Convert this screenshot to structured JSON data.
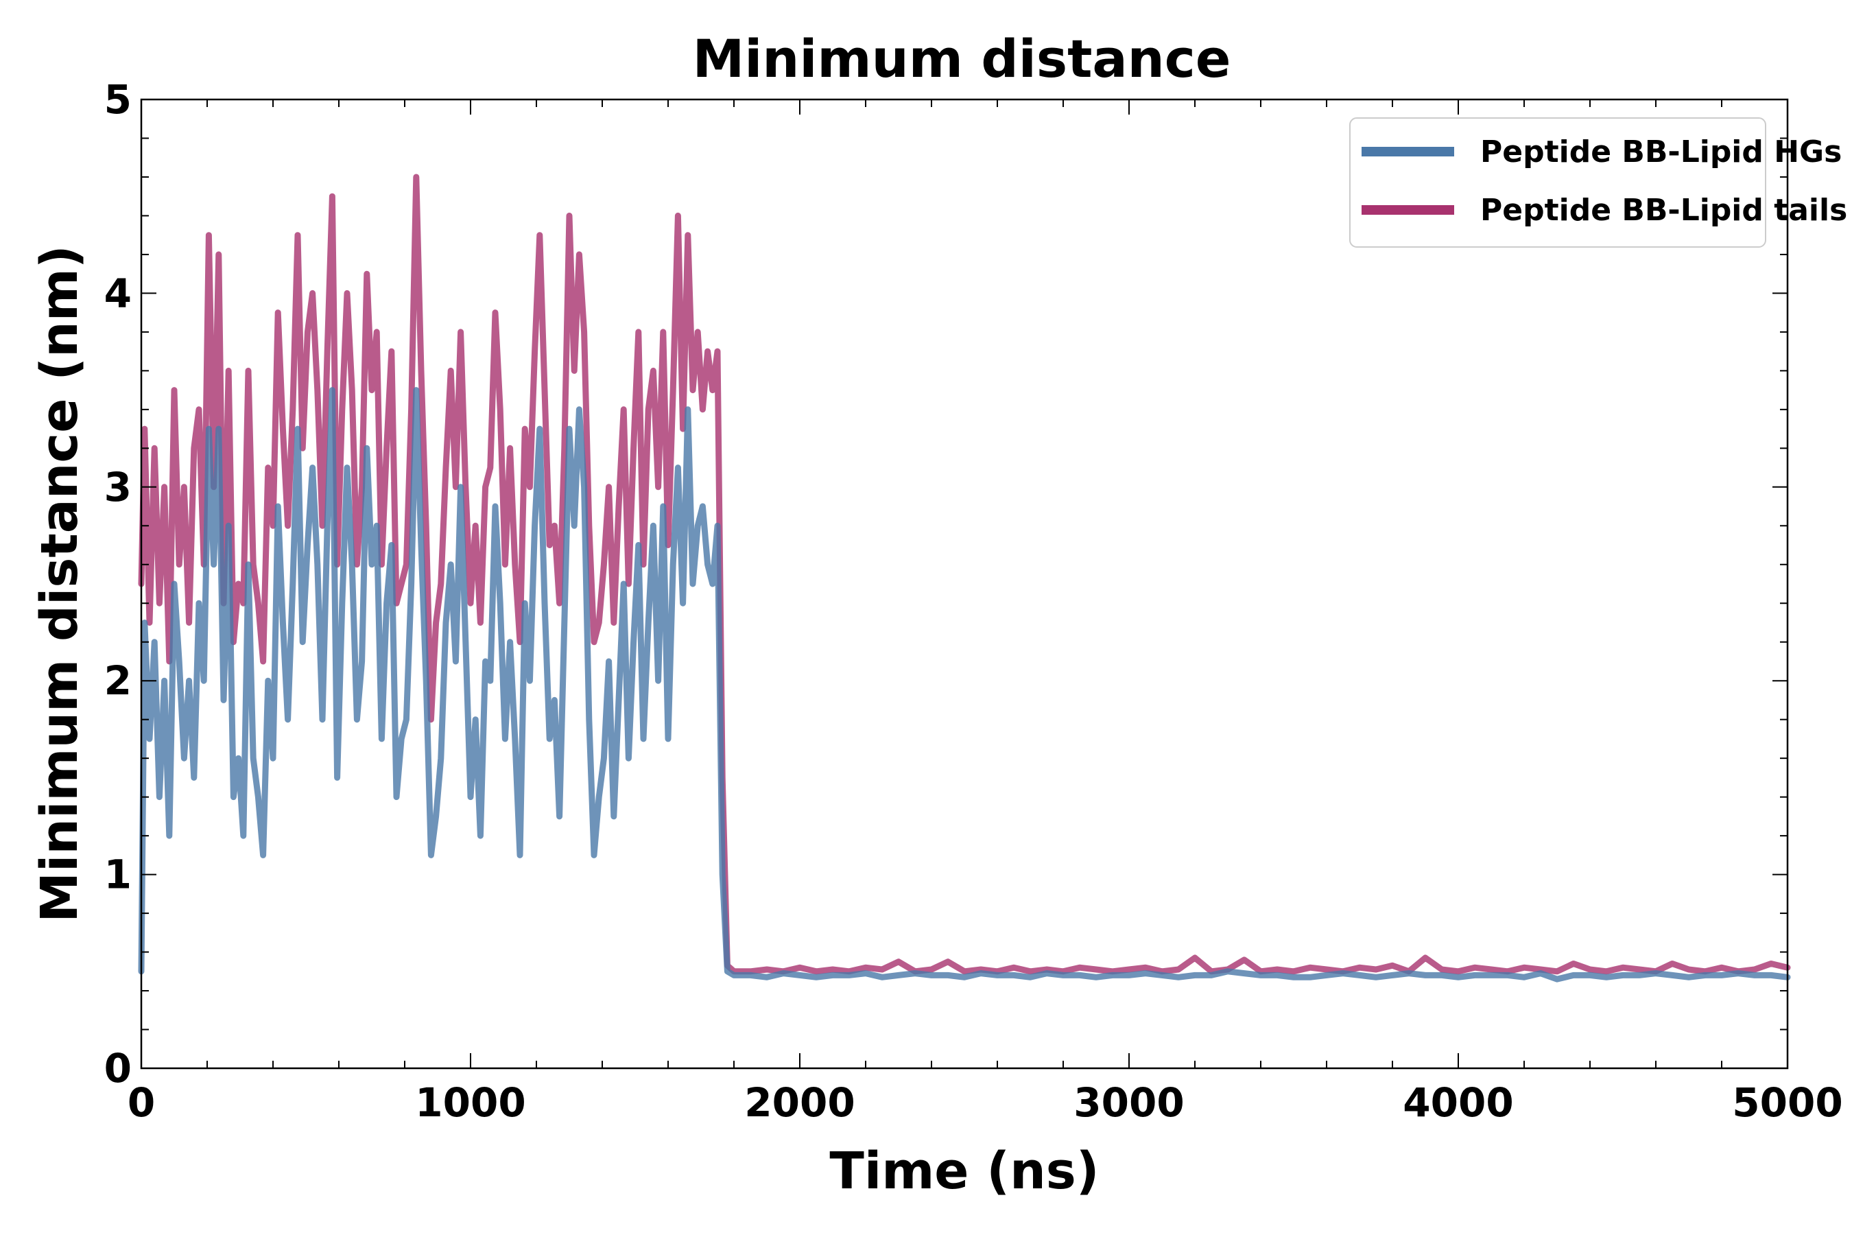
{
  "chart_data": {
    "type": "line",
    "title": "Minimum distance",
    "xlabel": "Time (ns)",
    "ylabel": "Minimum distance (nm)",
    "xlim": [
      0,
      5000
    ],
    "ylim": [
      0,
      5
    ],
    "xticks": [
      0,
      1000,
      2000,
      3000,
      4000,
      5000
    ],
    "xtick_labels": [
      "0",
      "1000",
      "2000",
      "3000",
      "4000",
      "5000"
    ],
    "yticks": [
      0,
      1,
      2,
      3,
      4,
      5
    ],
    "ytick_labels": [
      "0",
      "1",
      "2",
      "3",
      "4",
      "5"
    ],
    "grid": false,
    "legend_position": "top-right",
    "series": [
      {
        "name": "Peptide BB-Lipid HGs",
        "color": "#4a78a8",
        "x": [
          0,
          10,
          25,
          40,
          55,
          70,
          85,
          100,
          115,
          130,
          145,
          160,
          175,
          190,
          205,
          220,
          235,
          250,
          265,
          280,
          295,
          310,
          325,
          340,
          355,
          370,
          385,
          400,
          415,
          430,
          445,
          460,
          475,
          490,
          505,
          520,
          535,
          550,
          565,
          580,
          595,
          610,
          625,
          640,
          655,
          670,
          685,
          700,
          715,
          730,
          745,
          760,
          775,
          790,
          805,
          820,
          835,
          850,
          865,
          880,
          895,
          910,
          925,
          940,
          955,
          970,
          985,
          1000,
          1015,
          1030,
          1045,
          1060,
          1075,
          1090,
          1105,
          1120,
          1135,
          1150,
          1165,
          1180,
          1195,
          1210,
          1225,
          1240,
          1255,
          1270,
          1285,
          1300,
          1315,
          1330,
          1345,
          1360,
          1375,
          1390,
          1405,
          1420,
          1435,
          1450,
          1465,
          1480,
          1495,
          1510,
          1525,
          1540,
          1555,
          1570,
          1585,
          1600,
          1615,
          1630,
          1645,
          1660,
          1675,
          1690,
          1705,
          1720,
          1735,
          1750,
          1765,
          1780,
          1800,
          1850,
          1900,
          1950,
          2000,
          2050,
          2100,
          2150,
          2200,
          2250,
          2300,
          2350,
          2400,
          2450,
          2500,
          2550,
          2600,
          2650,
          2700,
          2750,
          2800,
          2850,
          2900,
          2950,
          3000,
          3050,
          3100,
          3150,
          3200,
          3250,
          3300,
          3350,
          3400,
          3450,
          3500,
          3550,
          3600,
          3650,
          3700,
          3750,
          3800,
          3850,
          3900,
          3950,
          4000,
          4050,
          4100,
          4150,
          4200,
          4250,
          4300,
          4350,
          4400,
          4450,
          4500,
          4550,
          4600,
          4650,
          4700,
          4750,
          4800,
          4850,
          4900,
          4950,
          5000
        ],
        "y": [
          0.5,
          2.3,
          1.7,
          2.2,
          1.4,
          2.0,
          1.2,
          2.5,
          2.1,
          1.6,
          2.0,
          1.5,
          2.4,
          2.0,
          3.3,
          2.6,
          3.3,
          1.9,
          2.8,
          1.4,
          1.6,
          1.2,
          2.6,
          1.6,
          1.4,
          1.1,
          2.0,
          1.6,
          2.9,
          2.3,
          1.8,
          2.5,
          3.3,
          2.2,
          2.7,
          3.1,
          2.6,
          1.8,
          2.8,
          3.5,
          1.5,
          2.4,
          3.1,
          2.6,
          1.8,
          2.1,
          3.2,
          2.6,
          2.8,
          1.7,
          2.4,
          2.7,
          1.4,
          1.7,
          1.8,
          2.5,
          3.5,
          2.7,
          2.0,
          1.1,
          1.3,
          1.6,
          2.3,
          2.6,
          2.1,
          3.0,
          2.2,
          1.4,
          1.8,
          1.2,
          2.1,
          2.0,
          2.9,
          2.4,
          1.7,
          2.2,
          1.7,
          1.1,
          2.4,
          2.0,
          2.8,
          3.3,
          2.4,
          1.7,
          1.9,
          1.3,
          2.3,
          3.3,
          2.8,
          3.4,
          3.0,
          1.8,
          1.1,
          1.4,
          1.6,
          2.1,
          1.3,
          1.9,
          2.5,
          1.6,
          2.2,
          2.7,
          1.7,
          2.3,
          2.8,
          2.0,
          2.9,
          1.7,
          2.6,
          3.1,
          2.4,
          3.4,
          2.5,
          2.8,
          2.9,
          2.6,
          2.5,
          2.8,
          1.0,
          0.5,
          0.48,
          0.48,
          0.47,
          0.49,
          0.48,
          0.47,
          0.48,
          0.48,
          0.49,
          0.47,
          0.48,
          0.49,
          0.48,
          0.48,
          0.47,
          0.49,
          0.48,
          0.48,
          0.47,
          0.49,
          0.48,
          0.48,
          0.47,
          0.48,
          0.48,
          0.49,
          0.48,
          0.47,
          0.48,
          0.48,
          0.5,
          0.49,
          0.48,
          0.48,
          0.47,
          0.47,
          0.48,
          0.49,
          0.48,
          0.47,
          0.48,
          0.49,
          0.48,
          0.48,
          0.47,
          0.48,
          0.48,
          0.48,
          0.47,
          0.49,
          0.46,
          0.48,
          0.48,
          0.47,
          0.48,
          0.48,
          0.49,
          0.48,
          0.47,
          0.48,
          0.48,
          0.49,
          0.48,
          0.48,
          0.47
        ]
      },
      {
        "name": "Peptide BB-Lipid tails",
        "color": "#a8326e",
        "x": [
          0,
          10,
          25,
          40,
          55,
          70,
          85,
          100,
          115,
          130,
          145,
          160,
          175,
          190,
          205,
          220,
          235,
          250,
          265,
          280,
          295,
          310,
          325,
          340,
          355,
          370,
          385,
          400,
          415,
          430,
          445,
          460,
          475,
          490,
          505,
          520,
          535,
          550,
          565,
          580,
          595,
          610,
          625,
          640,
          655,
          670,
          685,
          700,
          715,
          730,
          745,
          760,
          775,
          790,
          805,
          820,
          835,
          850,
          865,
          880,
          895,
          910,
          925,
          940,
          955,
          970,
          985,
          1000,
          1015,
          1030,
          1045,
          1060,
          1075,
          1090,
          1105,
          1120,
          1135,
          1150,
          1165,
          1180,
          1195,
          1210,
          1225,
          1240,
          1255,
          1270,
          1285,
          1300,
          1315,
          1330,
          1345,
          1360,
          1375,
          1390,
          1405,
          1420,
          1435,
          1450,
          1465,
          1480,
          1495,
          1510,
          1525,
          1540,
          1555,
          1570,
          1585,
          1600,
          1615,
          1630,
          1645,
          1660,
          1675,
          1690,
          1705,
          1720,
          1735,
          1750,
          1765,
          1780,
          1800,
          1850,
          1900,
          1950,
          2000,
          2050,
          2100,
          2150,
          2200,
          2250,
          2300,
          2350,
          2400,
          2450,
          2500,
          2550,
          2600,
          2650,
          2700,
          2750,
          2800,
          2850,
          2900,
          2950,
          3000,
          3050,
          3100,
          3150,
          3200,
          3250,
          3300,
          3350,
          3400,
          3450,
          3500,
          3550,
          3600,
          3650,
          3700,
          3750,
          3800,
          3850,
          3900,
          3950,
          4000,
          4050,
          4100,
          4150,
          4200,
          4250,
          4300,
          4350,
          4400,
          4450,
          4500,
          4550,
          4600,
          4650,
          4700,
          4750,
          4800,
          4850,
          4900,
          4950,
          5000
        ],
        "y": [
          2.5,
          3.3,
          2.3,
          3.2,
          2.4,
          3.0,
          2.1,
          3.5,
          2.6,
          3.0,
          2.3,
          3.2,
          3.4,
          2.6,
          4.3,
          3.0,
          4.2,
          2.4,
          3.6,
          2.2,
          2.5,
          2.4,
          3.6,
          2.6,
          2.4,
          2.1,
          3.1,
          2.8,
          3.9,
          3.3,
          2.8,
          3.4,
          4.3,
          3.2,
          3.8,
          4.0,
          3.5,
          2.8,
          3.7,
          4.5,
          2.6,
          3.4,
          4.0,
          3.5,
          2.6,
          3.0,
          4.1,
          3.5,
          3.8,
          2.6,
          3.2,
          3.7,
          2.4,
          2.5,
          2.6,
          3.4,
          4.6,
          3.6,
          2.8,
          1.8,
          2.3,
          2.5,
          3.1,
          3.6,
          3.0,
          3.8,
          3.0,
          2.4,
          2.8,
          2.3,
          3.0,
          3.1,
          3.9,
          3.4,
          2.6,
          3.2,
          2.6,
          2.2,
          3.3,
          3.0,
          3.7,
          4.3,
          3.5,
          2.7,
          2.8,
          2.4,
          3.2,
          4.4,
          3.6,
          4.2,
          3.8,
          2.8,
          2.2,
          2.3,
          2.6,
          3.0,
          2.3,
          2.9,
          3.4,
          2.5,
          3.2,
          3.8,
          2.6,
          3.4,
          3.6,
          3.0,
          3.8,
          2.7,
          3.5,
          4.4,
          3.3,
          4.3,
          3.5,
          3.8,
          3.4,
          3.7,
          3.5,
          3.7,
          1.5,
          0.53,
          0.5,
          0.5,
          0.51,
          0.5,
          0.52,
          0.5,
          0.51,
          0.5,
          0.52,
          0.51,
          0.55,
          0.5,
          0.51,
          0.55,
          0.5,
          0.51,
          0.5,
          0.52,
          0.5,
          0.51,
          0.5,
          0.52,
          0.51,
          0.5,
          0.51,
          0.52,
          0.5,
          0.51,
          0.57,
          0.5,
          0.51,
          0.56,
          0.5,
          0.51,
          0.5,
          0.52,
          0.51,
          0.5,
          0.52,
          0.51,
          0.53,
          0.5,
          0.57,
          0.51,
          0.5,
          0.52,
          0.51,
          0.5,
          0.52,
          0.51,
          0.5,
          0.54,
          0.51,
          0.5,
          0.52,
          0.51,
          0.5,
          0.54,
          0.51,
          0.5,
          0.52,
          0.5,
          0.51,
          0.54,
          0.52
        ]
      }
    ]
  }
}
